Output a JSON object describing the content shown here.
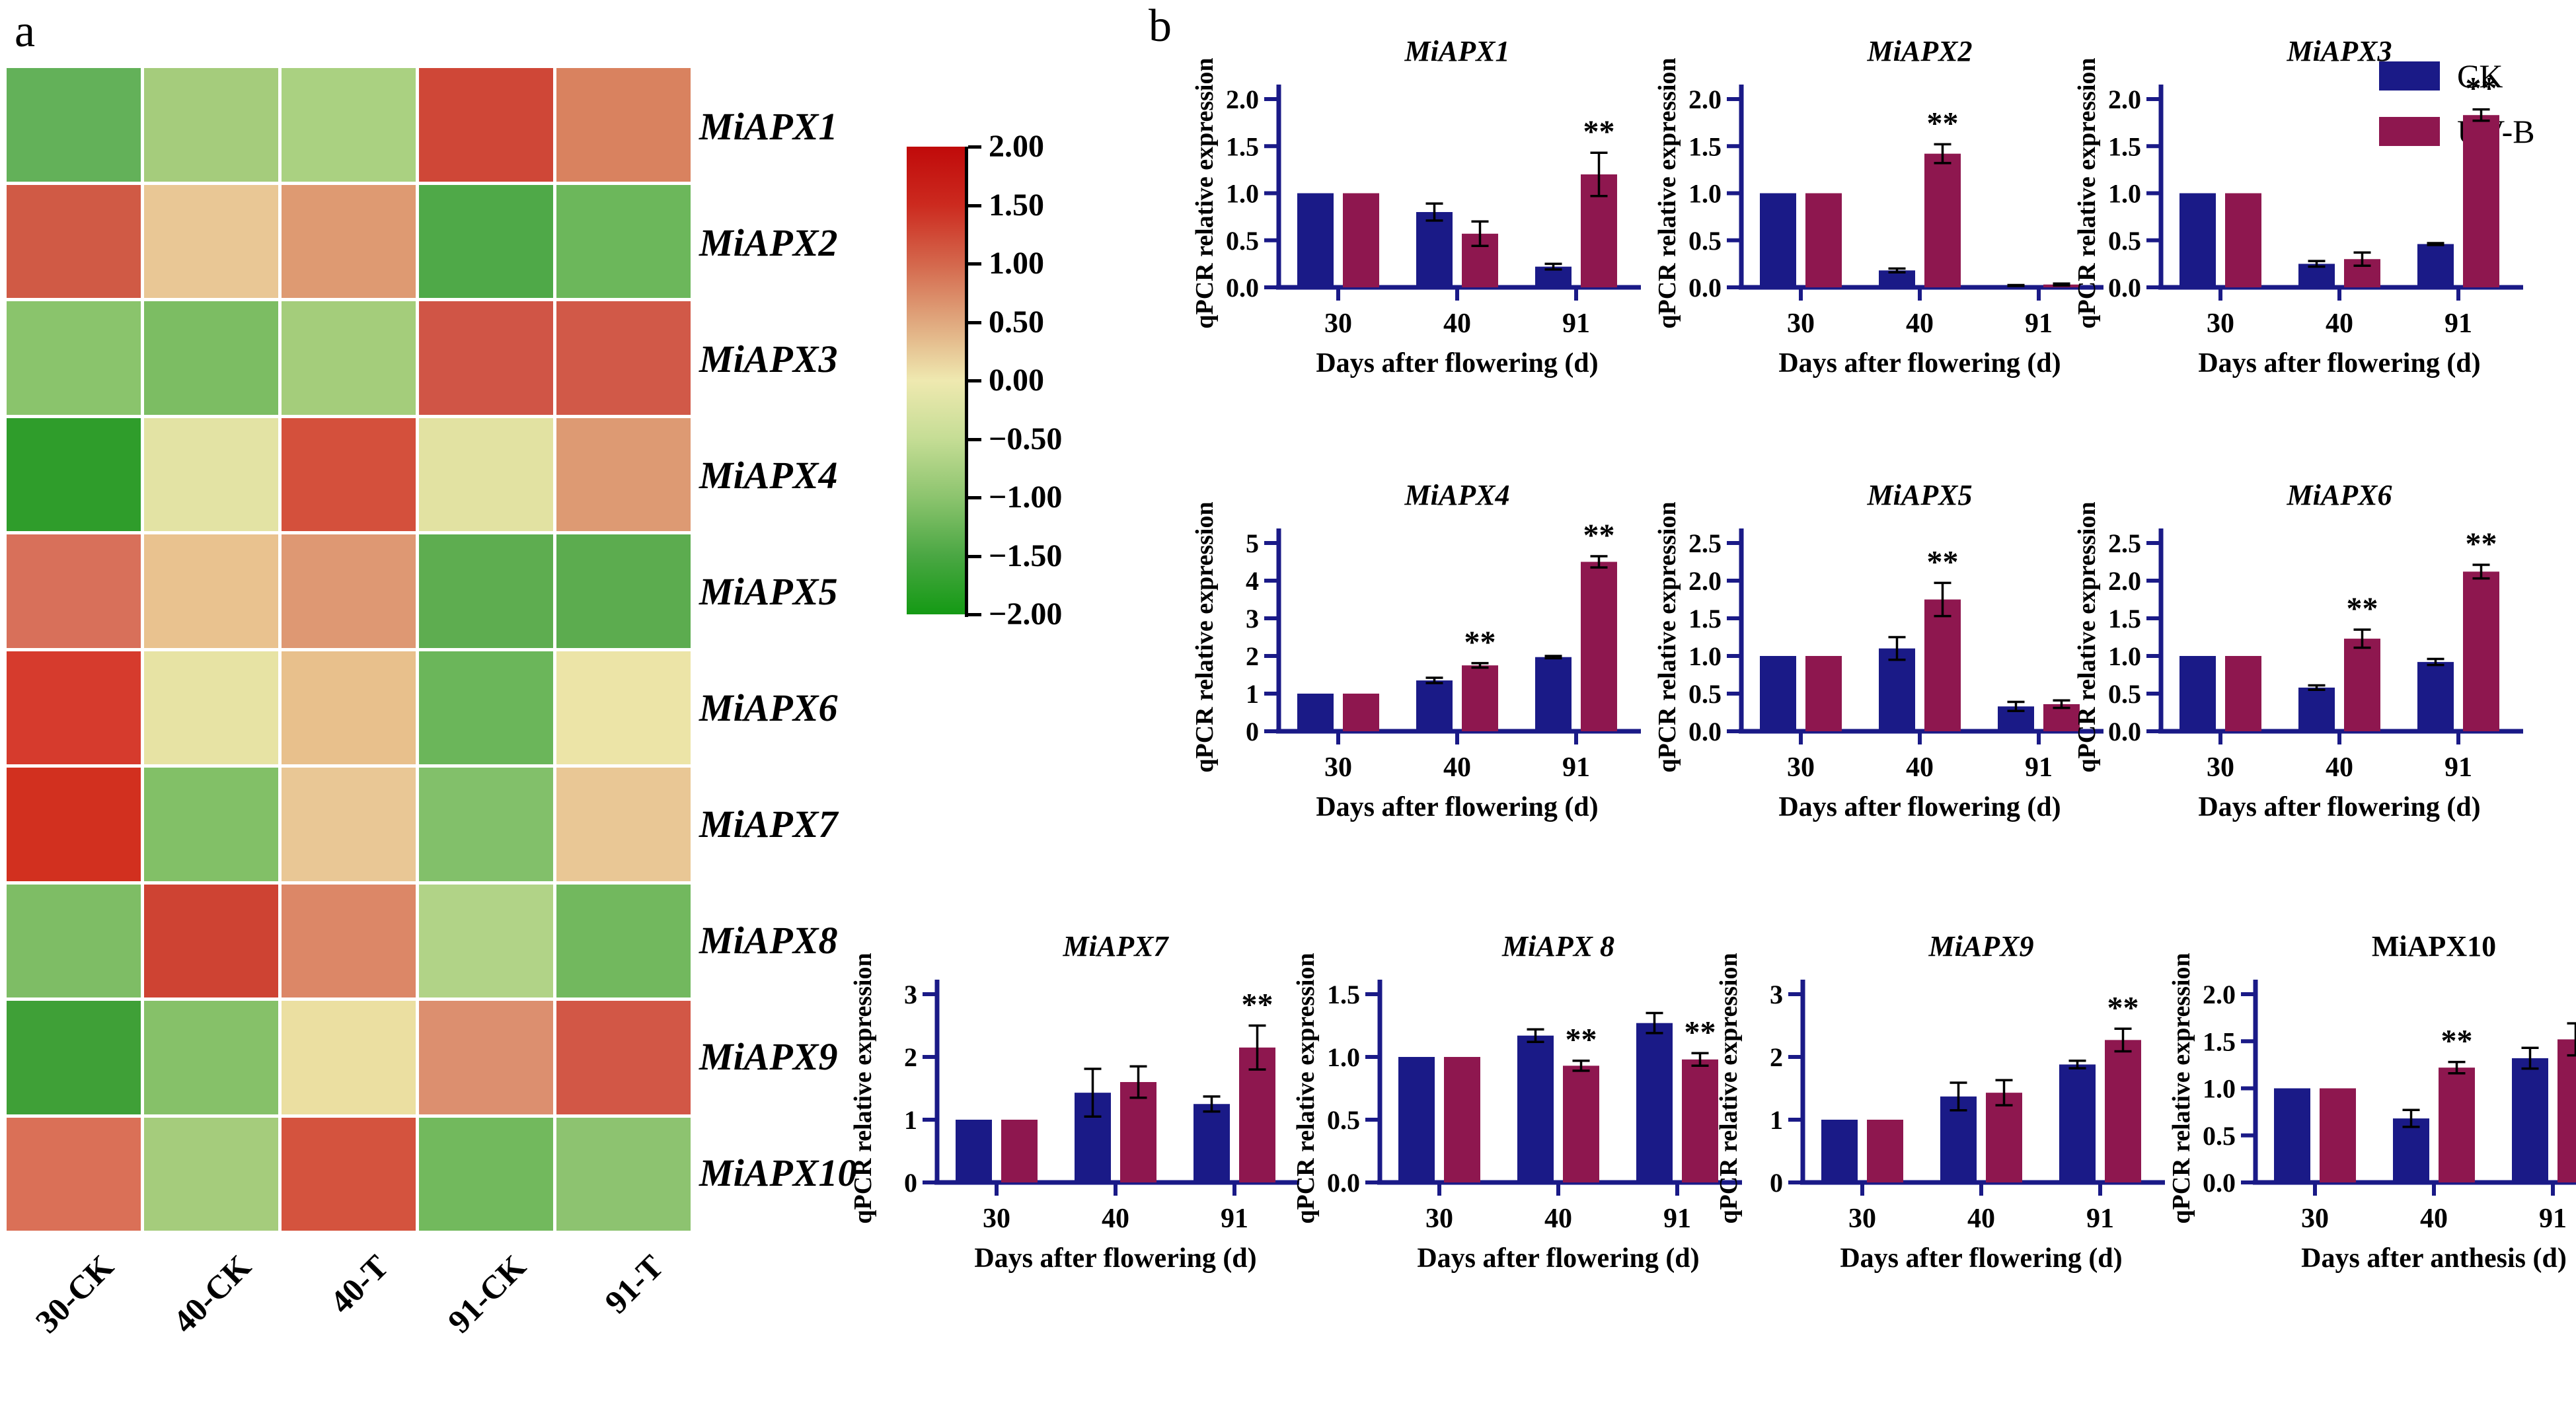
{
  "panel_a": {
    "label": "a"
  },
  "panel_b": {
    "label": "b",
    "legend": [
      {
        "label": "CK",
        "color": "#1a1a87"
      },
      {
        "label": "UV-B",
        "color": "#8e174f"
      }
    ]
  },
  "chart_data": [
    {
      "type": "heatmap",
      "name": "apx-expression-heatmap",
      "rows": [
        "MiAPX1",
        "MiAPX2",
        "MiAPX3",
        "MiAPX4",
        "MiAPX5",
        "MiAPX6",
        "MiAPX7",
        "MiAPX8",
        "MiAPX9",
        "MiAPX10"
      ],
      "columns": [
        "30-CK",
        "40-CK",
        "40-T",
        "91-CK",
        "91-T"
      ],
      "scale_min": -2.0,
      "scale_max": 2.0,
      "values": [
        [
          -1.1,
          -0.6,
          -0.55,
          1.5,
          0.75
        ],
        [
          1.2,
          0.45,
          0.8,
          -1.5,
          -1.0
        ],
        [
          -0.8,
          -1.0,
          -0.6,
          1.35,
          1.3
        ],
        [
          -1.9,
          -0.1,
          1.5,
          -0.1,
          0.8
        ],
        [
          1.0,
          0.55,
          0.8,
          -1.2,
          -1.2
        ],
        [
          1.8,
          -0.1,
          0.6,
          -1.1,
          -0.05
        ],
        [
          1.9,
          -0.9,
          0.45,
          -0.9,
          0.45
        ],
        [
          -0.95,
          1.6,
          0.95,
          -0.4,
          -1.1
        ],
        [
          -1.6,
          -0.85,
          0.0,
          0.85,
          1.3
        ],
        [
          0.95,
          -0.6,
          1.45,
          -1.1,
          -0.7
        ]
      ],
      "cell_colors": [
        [
          "#63b159",
          "#a5cc7c",
          "#aad181",
          "#cf4737",
          "#d9825f"
        ],
        [
          "#d05a45",
          "#e9c795",
          "#de9a72",
          "#4fa948",
          "#6cb75b"
        ],
        [
          "#8ac46c",
          "#7cbd63",
          "#a4cd7b",
          "#d05546",
          "#d15948"
        ],
        [
          "#2f9d2b",
          "#e3e3a4",
          "#d4503c",
          "#e2e2a2",
          "#dd9a73"
        ],
        [
          "#d8705a",
          "#e9c28f",
          "#de9873",
          "#5ead50",
          "#5cac4f"
        ],
        [
          "#d63b2d",
          "#e7e3a4",
          "#e8c08c",
          "#6bb65a",
          "#ece4a7"
        ],
        [
          "#d2301f",
          "#82c067",
          "#e9c795",
          "#82c06a",
          "#e9c795"
        ],
        [
          "#7ebd65",
          "#ce4333",
          "#dc8767",
          "#b1d387",
          "#72b85e"
        ],
        [
          "#3fa037",
          "#86c169",
          "#ebdfa1",
          "#dc8f6f",
          "#d25746"
        ],
        [
          "#da7057",
          "#a5cc7c",
          "#d4533e",
          "#72b95d",
          "#8dc370"
        ]
      ],
      "colorbar": {
        "ticks": [
          "2.00",
          "1.50",
          "1.00",
          "0.50",
          "0.00",
          "−0.50",
          "−1.00",
          "−1.50",
          "−2.00"
        ],
        "gradient": [
          "#c00a0a",
          "#cc2a1f",
          "#d4674c",
          "#e0a87e",
          "#efe9b0",
          "#c5dd95",
          "#8cc46e",
          "#4aa743",
          "#149a14"
        ]
      }
    },
    {
      "type": "bar",
      "title": "MiAPX1",
      "title_italic": true,
      "categories": [
        "30",
        "40",
        "91"
      ],
      "xlabel": "Days after flowering (d)",
      "ylabel": "qPCR relative expression",
      "ylim": [
        0,
        2.0
      ],
      "yticks": [
        "0.0",
        "0.5",
        "1.0",
        "1.5",
        "2.0"
      ],
      "series": [
        {
          "name": "CK",
          "values": [
            1.0,
            0.8,
            0.22
          ],
          "errors": [
            0,
            0.09,
            0.03
          ]
        },
        {
          "name": "UV-B",
          "values": [
            1.0,
            0.57,
            1.2
          ],
          "errors": [
            0,
            0.13,
            0.23
          ]
        }
      ],
      "significance": [
        "",
        "",
        "**"
      ]
    },
    {
      "type": "bar",
      "title": "MiAPX2",
      "title_italic": true,
      "categories": [
        "30",
        "40",
        "91"
      ],
      "xlabel": "Days after flowering (d)",
      "ylabel": "qPCR relative expression",
      "ylim": [
        0,
        2.0
      ],
      "yticks": [
        "0.0",
        "0.5",
        "1.0",
        "1.5",
        "2.0"
      ],
      "series": [
        {
          "name": "CK",
          "values": [
            1.0,
            0.18,
            0.02
          ],
          "errors": [
            0,
            0.02,
            0.005
          ]
        },
        {
          "name": "UV-B",
          "values": [
            1.0,
            1.42,
            0.03
          ],
          "errors": [
            0,
            0.1,
            0.01
          ]
        }
      ],
      "significance": [
        "",
        "**",
        ""
      ]
    },
    {
      "type": "bar",
      "title": "MiAPX3",
      "title_italic": true,
      "categories": [
        "30",
        "40",
        "91"
      ],
      "xlabel": "Days after flowering (d)",
      "ylabel": "qPCR relative expression",
      "ylim": [
        0,
        2.0
      ],
      "yticks": [
        "0.0",
        "0.5",
        "1.0",
        "1.5",
        "2.0"
      ],
      "series": [
        {
          "name": "CK",
          "values": [
            1.0,
            0.25,
            0.46
          ],
          "errors": [
            0,
            0.03,
            0.01
          ]
        },
        {
          "name": "UV-B",
          "values": [
            1.0,
            0.3,
            1.83
          ],
          "errors": [
            0,
            0.07,
            0.06
          ]
        }
      ],
      "significance": [
        "",
        "",
        "**"
      ]
    },
    {
      "type": "bar",
      "title": "MiAPX4",
      "title_italic": true,
      "categories": [
        "30",
        "40",
        "91"
      ],
      "xlabel": "Days after flowering (d)",
      "ylabel": "qPCR relative expression",
      "ylim": [
        0,
        5
      ],
      "yticks": [
        "0",
        "1",
        "2",
        "3",
        "4",
        "5"
      ],
      "series": [
        {
          "name": "CK",
          "values": [
            1.0,
            1.35,
            1.97
          ],
          "errors": [
            0,
            0.07,
            0.03
          ]
        },
        {
          "name": "UV-B",
          "values": [
            1.0,
            1.75,
            4.5
          ],
          "errors": [
            0,
            0.06,
            0.15
          ]
        }
      ],
      "significance": [
        "",
        "**",
        "**"
      ]
    },
    {
      "type": "bar",
      "title": "MiAPX5",
      "title_italic": true,
      "categories": [
        "30",
        "40",
        "91"
      ],
      "xlabel": "Days after flowering (d)",
      "ylabel": "qPCR relative expression",
      "ylim": [
        0,
        2.5
      ],
      "yticks": [
        "0.0",
        "0.5",
        "1.0",
        "1.5",
        "2.0",
        "2.5"
      ],
      "series": [
        {
          "name": "CK",
          "values": [
            1.0,
            1.1,
            0.33
          ],
          "errors": [
            0,
            0.15,
            0.06
          ]
        },
        {
          "name": "UV-B",
          "values": [
            1.0,
            1.75,
            0.36
          ],
          "errors": [
            0,
            0.22,
            0.05
          ]
        }
      ],
      "significance": [
        "",
        "**",
        ""
      ]
    },
    {
      "type": "bar",
      "title": "MiAPX6",
      "title_italic": true,
      "categories": [
        "30",
        "40",
        "91"
      ],
      "xlabel": "Days after flowering (d)",
      "ylabel": "qPCR relative expression",
      "ylim": [
        0,
        2.5
      ],
      "yticks": [
        "0.0",
        "0.5",
        "1.0",
        "1.5",
        "2.0",
        "2.5"
      ],
      "series": [
        {
          "name": "CK",
          "values": [
            1.0,
            0.58,
            0.92
          ],
          "errors": [
            0,
            0.03,
            0.04
          ]
        },
        {
          "name": "UV-B",
          "values": [
            1.0,
            1.23,
            2.12
          ],
          "errors": [
            0,
            0.12,
            0.09
          ]
        }
      ],
      "significance": [
        "",
        "**",
        "**"
      ]
    },
    {
      "type": "bar",
      "title": "MiAPX7",
      "title_italic": true,
      "categories": [
        "30",
        "40",
        "91"
      ],
      "xlabel": "Days after flowering (d)",
      "ylabel": "qPCR relative expression",
      "ylim": [
        0,
        3
      ],
      "yticks": [
        "0",
        "1",
        "2",
        "3"
      ],
      "series": [
        {
          "name": "CK",
          "values": [
            1.0,
            1.43,
            1.25
          ],
          "errors": [
            0,
            0.38,
            0.12
          ]
        },
        {
          "name": "UV-B",
          "values": [
            1.0,
            1.6,
            2.15
          ],
          "errors": [
            0,
            0.25,
            0.35
          ]
        }
      ],
      "significance": [
        "",
        "",
        "**"
      ]
    },
    {
      "type": "bar",
      "title": "MiAPX 8",
      "title_italic": true,
      "categories": [
        "30",
        "40",
        "91"
      ],
      "xlabel": "Days after flowering (d)",
      "ylabel": "qPCR relative expression",
      "ylim": [
        0,
        1.5
      ],
      "yticks": [
        "0.0",
        "0.5",
        "1.0",
        "1.5"
      ],
      "series": [
        {
          "name": "CK",
          "values": [
            1.0,
            1.17,
            1.27
          ],
          "errors": [
            0,
            0.05,
            0.08
          ]
        },
        {
          "name": "UV-B",
          "values": [
            1.0,
            0.93,
            0.98
          ],
          "errors": [
            0,
            0.04,
            0.05
          ]
        }
      ],
      "significance": [
        "",
        "**",
        "**"
      ]
    },
    {
      "type": "bar",
      "title": "MiAPX9",
      "title_italic": true,
      "categories": [
        "30",
        "40",
        "91"
      ],
      "xlabel": "Days after flowering (d)",
      "ylabel": "qPCR relative expression",
      "ylim": [
        0,
        3
      ],
      "yticks": [
        "0",
        "1",
        "2",
        "3"
      ],
      "series": [
        {
          "name": "CK",
          "values": [
            1.0,
            1.37,
            1.88
          ],
          "errors": [
            0,
            0.22,
            0.06
          ]
        },
        {
          "name": "UV-B",
          "values": [
            1.0,
            1.43,
            2.27
          ],
          "errors": [
            0,
            0.2,
            0.18
          ]
        }
      ],
      "significance": [
        "",
        "",
        "**"
      ]
    },
    {
      "type": "bar",
      "title": "MiAPX10",
      "title_italic": false,
      "categories": [
        "30",
        "40",
        "91"
      ],
      "xlabel": "Days after anthesis (d)",
      "ylabel": "qPCR relative expression",
      "ylim": [
        0,
        2.0
      ],
      "yticks": [
        "0.0",
        "0.5",
        "1.0",
        "1.5",
        "2.0"
      ],
      "series": [
        {
          "name": "CK",
          "values": [
            1.0,
            0.68,
            1.32
          ],
          "errors": [
            0,
            0.09,
            0.11
          ]
        },
        {
          "name": "UV-B",
          "values": [
            1.0,
            1.22,
            1.52
          ],
          "errors": [
            0,
            0.06,
            0.17
          ]
        }
      ],
      "significance": [
        "",
        "**",
        ""
      ]
    }
  ]
}
